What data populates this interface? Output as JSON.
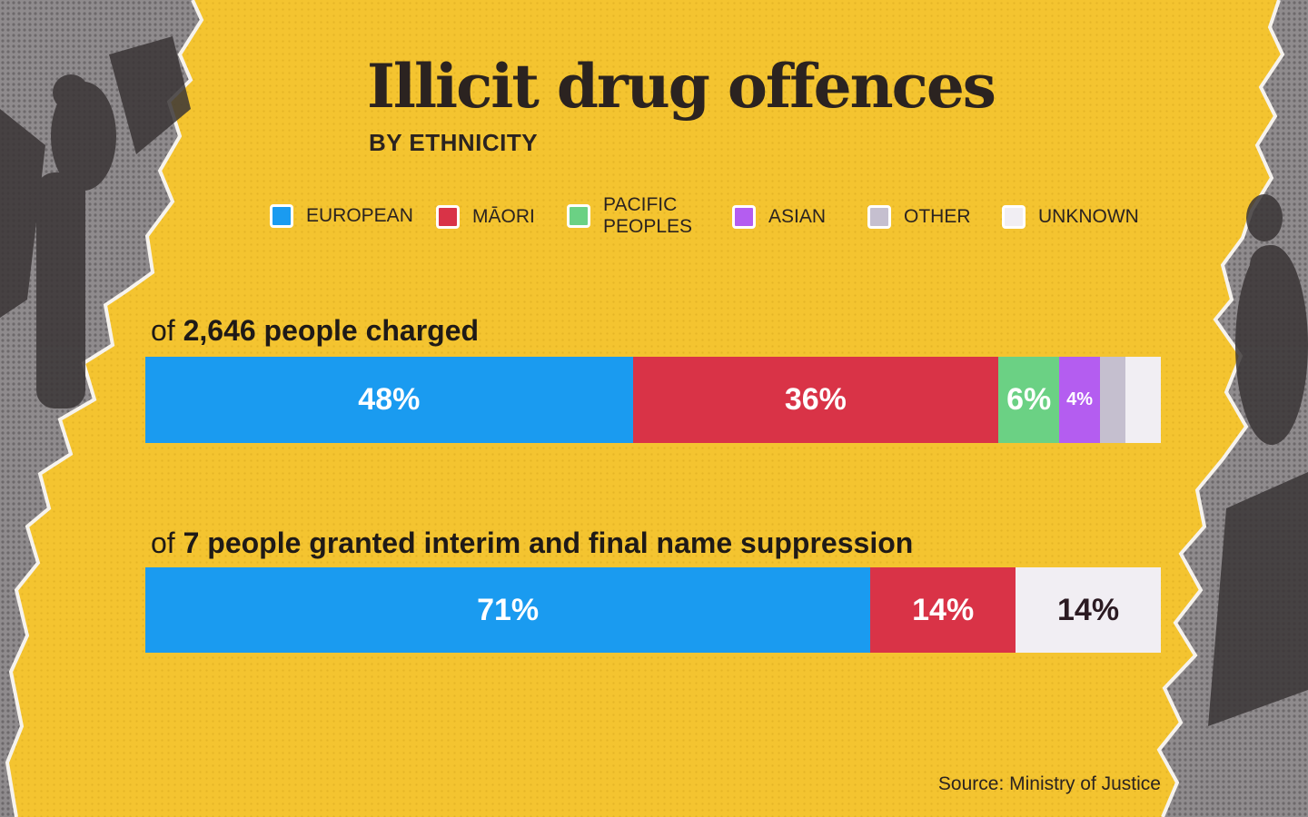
{
  "title": "Illicit drug offences",
  "subtitle": "BY ETHNICITY",
  "source": "Source: Ministry of Justice",
  "legend": [
    {
      "label": "EUROPEAN",
      "color": "#1a9bf0"
    },
    {
      "label": "MĀORI",
      "color": "#d93347"
    },
    {
      "label": "PACIFIC\nPEOPLES",
      "color": "#6bd184"
    },
    {
      "label": "ASIAN",
      "color": "#b45df0"
    },
    {
      "label": "OTHER",
      "color": "#c5bfcf"
    },
    {
      "label": "UNKNOWN",
      "color": "#f1eef3"
    }
  ],
  "chart_data": [
    {
      "type": "bar",
      "orientation": "horizontal-stacked-100",
      "title_prefix": "of",
      "title_bold": "2,646 people charged",
      "series": [
        {
          "name": "EUROPEAN",
          "value": 48,
          "label": "48%"
        },
        {
          "name": "MĀORI",
          "value": 36,
          "label": "36%"
        },
        {
          "name": "PACIFIC PEOPLES",
          "value": 6,
          "label": "6%"
        },
        {
          "name": "ASIAN",
          "value": 4,
          "label": "4%"
        },
        {
          "name": "OTHER",
          "value": 2.5,
          "label": ""
        },
        {
          "name": "UNKNOWN",
          "value": 3.5,
          "label": ""
        }
      ]
    },
    {
      "type": "bar",
      "orientation": "horizontal-stacked-100",
      "title_prefix": "of",
      "title_bold": "7 people granted interim and final name suppression",
      "series": [
        {
          "name": "EUROPEAN",
          "value": 71.4,
          "label": "71%"
        },
        {
          "name": "MĀORI",
          "value": 14.3,
          "label": "14%"
        },
        {
          "name": "UNKNOWN",
          "value": 14.3,
          "label": "14%"
        }
      ]
    }
  ]
}
